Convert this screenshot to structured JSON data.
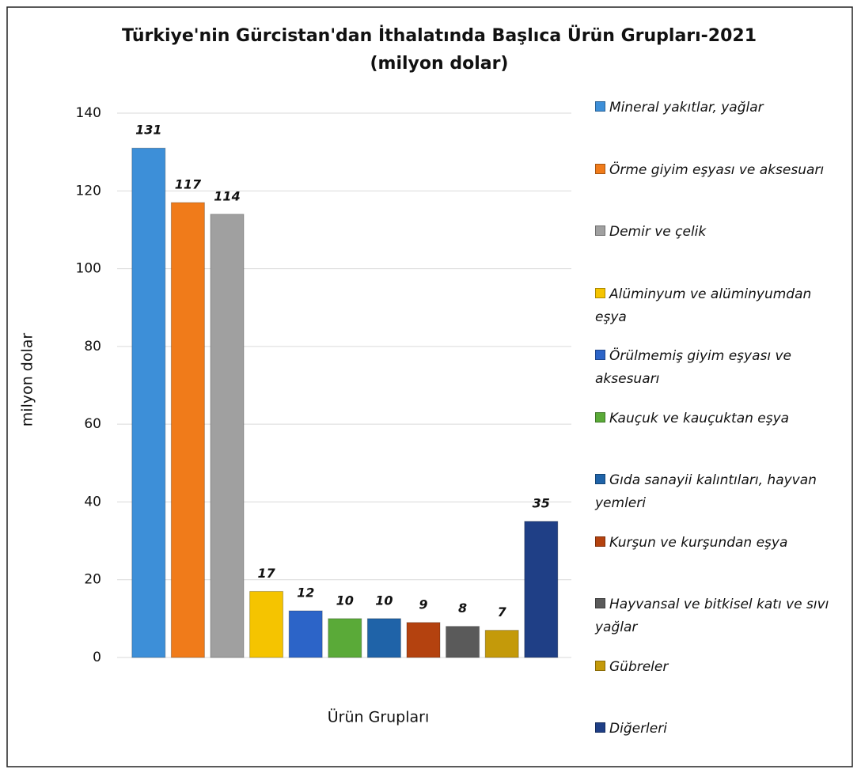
{
  "chart_data": {
    "type": "bar",
    "title": "Türkiye'nin Gürcistan'dan İthalatında Başlıca Ürün Grupları-2021",
    "subtitle": "(milyon dolar)",
    "x_label": "Ürün Grupları",
    "y_label": "milyon dolar",
    "categories": [
      "Mineral yakıtlar, yağlar",
      "Örme giyim eşyası ve aksesuarı",
      "Demir ve çelik",
      "Alüminyum ve alüminyumdan eşya",
      "Örülmemiş giyim eşyası ve aksesuarı",
      "Kauçuk ve kauçuktan eşya",
      "Gıda sanayii kalıntıları, hayvan yemleri",
      "Kurşun ve kurşundan eşya",
      "Hayvansal ve bitkisel katı ve sıvı yağlar",
      "Gübreler",
      "Diğerleri"
    ],
    "values": [
      131,
      117,
      114,
      17,
      12,
      10,
      10,
      9,
      8,
      7,
      35
    ],
    "colors": [
      "#3d8fd8",
      "#f07b1a",
      "#a0a0a0",
      "#f5c400",
      "#2c64c8",
      "#5aaa38",
      "#1f63a8",
      "#b4420f",
      "#5a5a5a",
      "#c49a0a",
      "#1f3f86"
    ],
    "ylim": [
      0,
      140
    ],
    "yticks": [
      0,
      20,
      40,
      60,
      80,
      100,
      120,
      140
    ],
    "grid": true,
    "legend": "right"
  }
}
